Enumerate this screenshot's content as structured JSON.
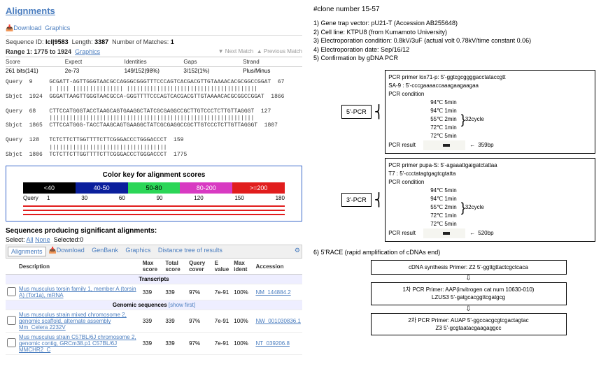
{
  "left": {
    "alignments_title": "Alignments",
    "download": "Download",
    "graphics": "Graphics",
    "seq_id": "lcl|9583",
    "seq_len": "3387",
    "matches": "1",
    "range": "Range 1: 1775 to 1924",
    "graphics_link": "Graphics",
    "next_match": "Next Match",
    "prev_match": "Previous Match",
    "stat_head": [
      "Score",
      "Expect",
      "Identities",
      "Gaps",
      "Strand"
    ],
    "stat_row": [
      "261 bits(141)",
      "2e-73",
      "149/152(98%)",
      "3/152(1%)",
      "Plus/Minus"
    ],
    "aln_rows": [
      "Query  9     GCGATT-AGTTGGGTAACGCCAGGGCGGGTTTCCCAGTCACGACGTTGTAAAACACGCGGCCGGAT  67",
      "             | |||| ||||||||||||||| |||||||||||||||||||||||||||||||||||||||",
      "Sbjct  1924  GGGATTAAGTTGGGTAACGCCA-GGGTTTTCCCAGTCACGACGTTGTAAAACACGCGGCCGGAT  1866",
      "",
      "Query  68    CTTCCATGGGTACCTAAGCAGTGAAGGCTATCGCGAGGCCGCTTGTCCCTCTTGTTAGGGT  127",
      "             |||||||||||||||||||||||||||||||||||||||||||||||||||||||||||||",
      "Sbjct  1865  CTTCCATGGG-TACCTAAGCAGTGAAGGCTATCGCGAGGCCGCTTGTCCCTCTTGTTAGGGT  1807",
      "",
      "Query  128   TCTCTTCTTGGTTTTCTTCGGGACCCTGGGACCCT  159",
      "             |||||||||||||||||||||||||||||||||||",
      "Sbjct  1806  TCTCTTCTTGGTTTTCTTCGGGACCCTGGGACCCT  1775"
    ],
    "color_key": {
      "title": "Color key for alignment scores",
      "segments": [
        {
          "label": "<40",
          "bg": "#000000",
          "fg": "#ffffff"
        },
        {
          "label": "40-50",
          "bg": "#0b1f9c",
          "fg": "#ffffff"
        },
        {
          "label": "50-80",
          "bg": "#2bd657",
          "fg": "#000000"
        },
        {
          "label": "80-200",
          "bg": "#d83ac2",
          "fg": "#ffffff"
        },
        {
          "label": ">=200",
          "bg": "#e11d1d",
          "fg": "#ffffff"
        }
      ],
      "query_label": "Query",
      "axis": [
        "1",
        "30",
        "60",
        "90",
        "120",
        "150",
        "180"
      ],
      "line_colors": [
        "#e11d1d",
        "#e11d1d",
        "#e11d1d"
      ]
    },
    "sig_title": "Sequences producing significant alignments:",
    "select": {
      "label": "Select:",
      "all": "All",
      "none": "None",
      "selected": "Selected:0"
    },
    "tabs": {
      "active": "Alignments",
      "items": [
        "Download",
        "GenBank",
        "Graphics",
        "Distance tree of results"
      ]
    },
    "rtbl": {
      "head": [
        "",
        "Description",
        "Max score",
        "Total score",
        "Query cover",
        "E value",
        "Max ident",
        "Accession"
      ],
      "transcripts_hd": "Transcripts",
      "genomic_hd": "Genomic sequences",
      "show": "[show first]",
      "rows": [
        {
          "desc": "Mus musculus torsin family 1, member A (torsin A) (Tor1a), mRNA",
          "ms": "339",
          "ts": "339",
          "qc": "97%",
          "ev": "7e-91",
          "mi": "100%",
          "acc": "NM_144884.2",
          "type": "t"
        },
        {
          "desc": "Mus musculus strain mixed chromosome 2, genomic scaffold, alternate assembly Mm_Celera 2232V",
          "ms": "339",
          "ts": "339",
          "qc": "97%",
          "ev": "7e-91",
          "mi": "100%",
          "acc": "NW_001030836.1",
          "type": "g"
        },
        {
          "desc": "Mus musculus strain C57BL/6J chromosome 2, genomic contig, GRCm38.p1 C57BL/6J MMCHR2_C",
          "ms": "339",
          "ts": "339",
          "qc": "97%",
          "ev": "7e-91",
          "mi": "100%",
          "acc": "NT_039206.8",
          "type": "g"
        }
      ]
    }
  },
  "right": {
    "clone": "#clone number 15-57",
    "notes": [
      "1) Gene trap vector: pU21-T (Accession AB255648)",
      "2) Cell line: KTPU8 (from Kumamoto University)",
      "3) Electroporation condition: 0.8kV/3uF (actual volt 0.78kV/time constant 0.06)",
      "4) Electroporation date: Sep/16/12",
      "5) Confirmation by gDNA PCR"
    ],
    "pcr5": {
      "label": "5'-PCR",
      "primer_l1": "PCR primer    lox71-p: 5'-ggtcgcggggacctataccgtt",
      "primer_l2": "              SA-9 : 5'-cccgaaaaccaaagaagaagaa",
      "cond_label": "PCR condition",
      "conds": [
        "94℃  5min",
        "94℃  1min",
        "55℃  2min",
        "72℃  1min",
        "72℃  5min"
      ],
      "cycle": "32cycle",
      "result_label": "PCR result",
      "band_size": "359bp"
    },
    "pcr3": {
      "label": "3'-PCR",
      "primer_l1": "PCR primer    pupa-S: 5'-agaaattgaigatctattaa",
      "primer_l2": "              T7    : 5'-ccctatagtgagtcgtatta",
      "cond_label": "PCR condition",
      "conds": [
        "94℃  5min",
        "94℃  1min",
        "55℃  2min",
        "72℃  1min",
        "72℃  5min"
      ],
      "cycle": "32cycle",
      "result_label": "PCR result",
      "band_size": "520bp"
    },
    "race_title": "6) 5'RACE (rapid amplification of cDNAs end)",
    "flow": [
      "cDNA synthesis Primer: Z2 5'-ggttgttactcgctcaca",
      "1차 PCR Primer: AAP(invitrogen cat num 10630-010)\nLZUS3 5'-gatgcacggttcgatgcg",
      "2차 PCR Primer: AUAP 5'-ggccacgcgtcgactagtac\nZ3    5'-gcgtaatacgaagaggcc"
    ]
  }
}
